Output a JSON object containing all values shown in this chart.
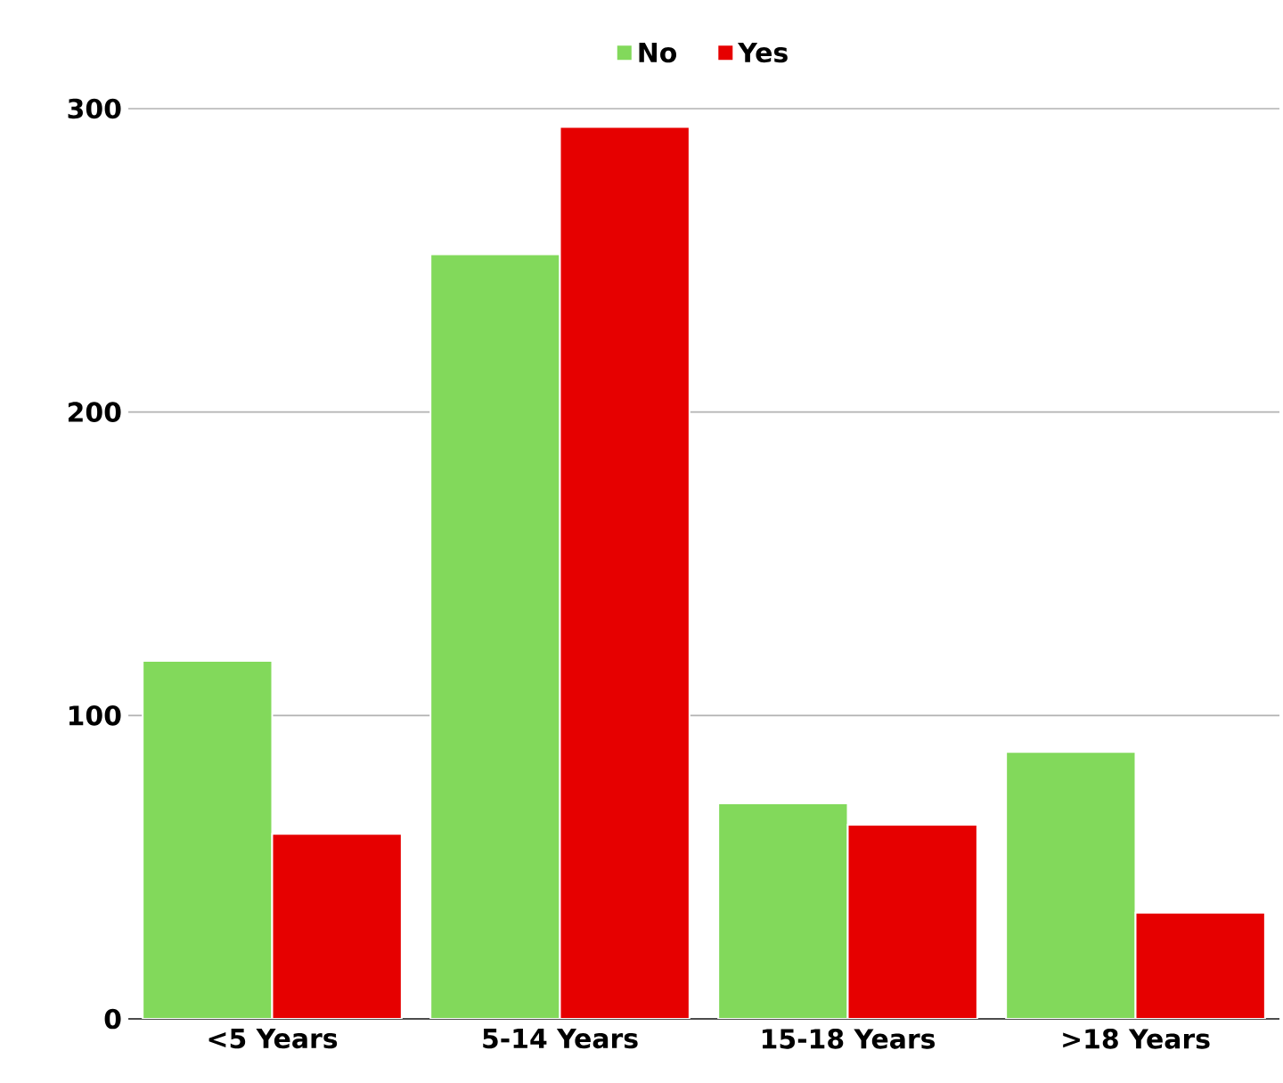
{
  "chart_data": {
    "type": "bar",
    "categories": [
      "<5 Years",
      "5-14 Years",
      "15-18 Years",
      ">18 Years"
    ],
    "series": [
      {
        "name": "No",
        "color": "#82d95b",
        "values": [
          118,
          252,
          71,
          88
        ]
      },
      {
        "name": "Yes",
        "color": "#e60000",
        "values": [
          61,
          294,
          64,
          35
        ]
      }
    ],
    "ylim": [
      0,
      300
    ],
    "yticks": [
      0,
      100,
      200,
      300
    ],
    "grid": "y",
    "legend": "top"
  }
}
